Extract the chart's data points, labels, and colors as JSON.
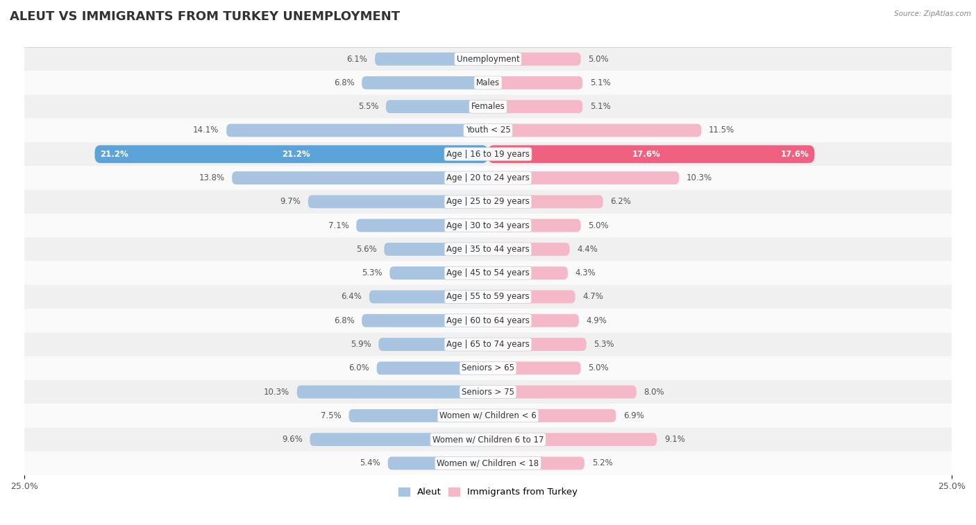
{
  "title": "ALEUT VS IMMIGRANTS FROM TURKEY UNEMPLOYMENT",
  "source": "Source: ZipAtlas.com",
  "categories": [
    "Unemployment",
    "Males",
    "Females",
    "Youth < 25",
    "Age | 16 to 19 years",
    "Age | 20 to 24 years",
    "Age | 25 to 29 years",
    "Age | 30 to 34 years",
    "Age | 35 to 44 years",
    "Age | 45 to 54 years",
    "Age | 55 to 59 years",
    "Age | 60 to 64 years",
    "Age | 65 to 74 years",
    "Seniors > 65",
    "Seniors > 75",
    "Women w/ Children < 6",
    "Women w/ Children 6 to 17",
    "Women w/ Children < 18"
  ],
  "aleut_values": [
    6.1,
    6.8,
    5.5,
    14.1,
    21.2,
    13.8,
    9.7,
    7.1,
    5.6,
    5.3,
    6.4,
    6.8,
    5.9,
    6.0,
    10.3,
    7.5,
    9.6,
    5.4
  ],
  "turkey_values": [
    5.0,
    5.1,
    5.1,
    11.5,
    17.6,
    10.3,
    6.2,
    5.0,
    4.4,
    4.3,
    4.7,
    4.9,
    5.3,
    5.0,
    8.0,
    6.9,
    9.1,
    5.2
  ],
  "aleut_color": "#a8c4e0",
  "turkey_color": "#f5b8c8",
  "aleut_highlight_color": "#5ba3d9",
  "turkey_highlight_color": "#f06080",
  "highlight_index": 4,
  "bar_height": 0.55,
  "xlim": 25.0,
  "row_colors": [
    "#f0f0f0",
    "#fafafa"
  ],
  "title_fontsize": 13,
  "label_fontsize": 8.5,
  "value_fontsize": 8.5,
  "axis_fontsize": 9,
  "legend_label_aleut": "Aleut",
  "legend_label_turkey": "Immigrants from Turkey"
}
